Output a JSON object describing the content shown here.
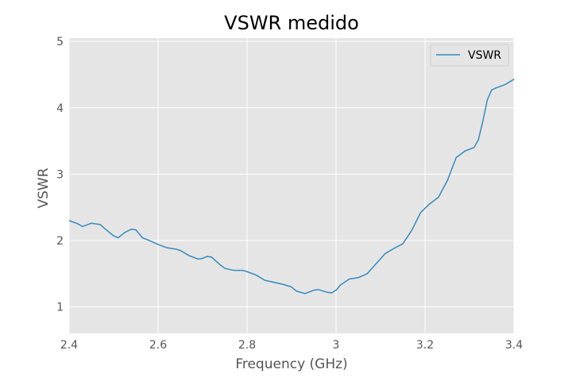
{
  "chart_data": {
    "type": "line",
    "title": "VSWR medido",
    "xlabel": "Frequency (GHz)",
    "ylabel": "VSWR",
    "xlim": [
      2.4,
      3.4
    ],
    "ylim": [
      0.6,
      5.05
    ],
    "xticks": [
      2.4,
      2.6,
      2.8,
      3.0,
      3.2,
      3.4
    ],
    "xtick_labels": [
      "2.4",
      "2.6",
      "2.8",
      "3",
      "3.2",
      "3.4"
    ],
    "yticks": [
      1,
      2,
      3,
      4,
      5
    ],
    "ytick_labels": [
      "1",
      "2",
      "3",
      "4",
      "5"
    ],
    "grid": true,
    "legend_position": "top-right",
    "style": "ggplot",
    "colors": {
      "plot_background": "#e5e5e5",
      "grid": "#ffffff",
      "line": "#348abd",
      "text": "#555555"
    },
    "series": [
      {
        "name": "VSWR",
        "x": [
          2.4,
          2.42,
          2.43,
          2.45,
          2.47,
          2.48,
          2.5,
          2.51,
          2.525,
          2.54,
          2.55,
          2.565,
          2.58,
          2.6,
          2.62,
          2.64,
          2.65,
          2.67,
          2.69,
          2.7,
          2.71,
          2.72,
          2.74,
          2.75,
          2.77,
          2.79,
          2.8,
          2.82,
          2.84,
          2.86,
          2.88,
          2.9,
          2.91,
          2.93,
          2.95,
          2.96,
          2.98,
          2.99,
          3.0,
          3.01,
          3.03,
          3.05,
          3.07,
          3.09,
          3.11,
          3.13,
          3.15,
          3.17,
          3.19,
          3.21,
          3.23,
          3.25,
          3.27,
          3.29,
          3.31,
          3.32,
          3.33,
          3.34,
          3.35,
          3.36,
          3.38,
          3.4
        ],
        "y": [
          2.3,
          2.25,
          2.21,
          2.26,
          2.24,
          2.18,
          2.07,
          2.04,
          2.12,
          2.17,
          2.16,
          2.04,
          2.0,
          1.94,
          1.89,
          1.87,
          1.85,
          1.77,
          1.72,
          1.73,
          1.76,
          1.75,
          1.63,
          1.58,
          1.55,
          1.55,
          1.53,
          1.48,
          1.4,
          1.37,
          1.34,
          1.3,
          1.24,
          1.2,
          1.25,
          1.26,
          1.22,
          1.21,
          1.25,
          1.33,
          1.42,
          1.44,
          1.5,
          1.65,
          1.8,
          1.88,
          1.95,
          2.15,
          2.42,
          2.55,
          2.65,
          2.9,
          3.25,
          3.35,
          3.4,
          3.52,
          3.8,
          4.12,
          4.27,
          4.3,
          4.35,
          4.43
        ]
      }
    ]
  }
}
